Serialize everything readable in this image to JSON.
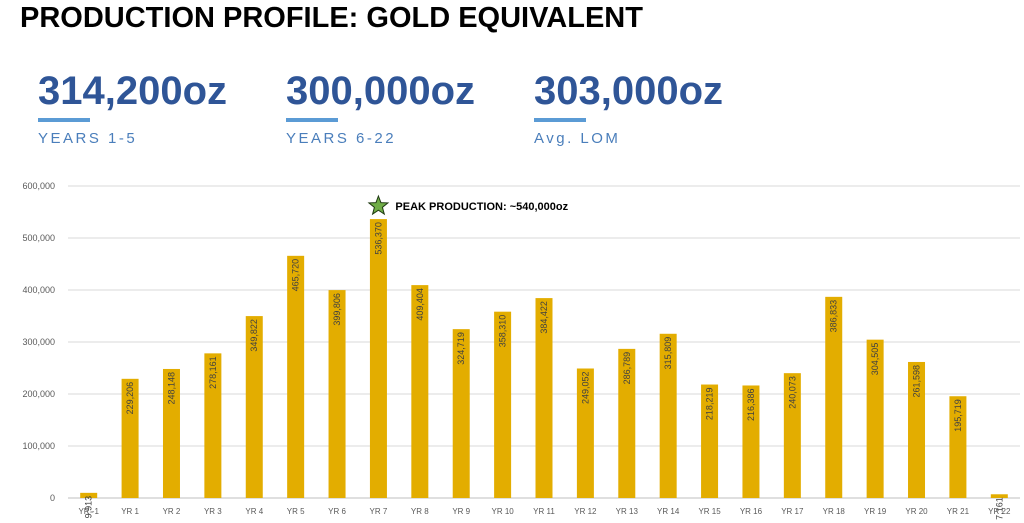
{
  "title": "PRODUCTION PROFILE: GOLD EQUIVALENT",
  "stats": [
    {
      "value": "314,200oz",
      "label": "YEARS 1-5"
    },
    {
      "value": "300,000oz",
      "label": "YEARS 6-22"
    },
    {
      "value": "303,000oz",
      "label": "Avg. LOM"
    }
  ],
  "colors": {
    "bar": "#e3ad00",
    "stat_value": "#2f5597",
    "stat_accent": "#5b9bd5",
    "star": "#70ad47"
  },
  "icons": {
    "peak": "star-icon"
  },
  "chart_data": {
    "type": "bar",
    "title": "",
    "xlabel": "",
    "ylabel": "",
    "ylim": [
      0,
      600000
    ],
    "yticks": [
      "0",
      "100,000",
      "200,000",
      "300,000",
      "400,000",
      "500,000",
      "600,000"
    ],
    "grid": true,
    "categories": [
      "YR -1",
      "YR 1",
      "YR 2",
      "YR 3",
      "YR 4",
      "YR 5",
      "YR 6",
      "YR 7",
      "YR 8",
      "YR 9",
      "YR 10",
      "YR 11",
      "YR 12",
      "YR 13",
      "YR 14",
      "YR 15",
      "YR 16",
      "YR 17",
      "YR 18",
      "YR 19",
      "YR 20",
      "YR 21",
      "YR 22"
    ],
    "values": [
      9913,
      229206,
      248148,
      278161,
      349822,
      465720,
      399806,
      536370,
      409404,
      324719,
      358310,
      384422,
      249052,
      286789,
      315809,
      218219,
      216386,
      240073,
      386833,
      304505,
      261598,
      195719,
      7161
    ],
    "data_labels": [
      "9,913",
      "229,206",
      "248,148",
      "278,161",
      "349,822",
      "465,720",
      "399,806",
      "536,370",
      "409,404",
      "324,719",
      "358,310",
      "384,422",
      "249,052",
      "286,789",
      "315,809",
      "218,219",
      "216,386",
      "240,073",
      "386,833",
      "304,505",
      "261,598",
      "195,719",
      "7,161"
    ],
    "annotation": {
      "text": "PEAK PRODUCTION: ~540,000oz",
      "category": "YR 7"
    }
  }
}
